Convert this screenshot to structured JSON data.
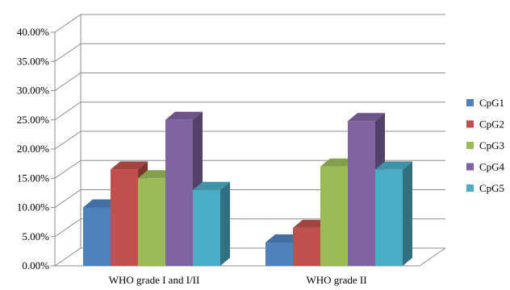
{
  "chart_data": {
    "type": "bar",
    "style": "3d-clustered-column",
    "categories": [
      "WHO grade I and I/II",
      "WHO grade II"
    ],
    "series": [
      {
        "name": "CpG1",
        "color": "#4f81bd",
        "values": [
          0.1,
          0.04
        ]
      },
      {
        "name": "CpG2",
        "color": "#c0504d",
        "values": [
          0.165,
          0.065
        ]
      },
      {
        "name": "CpG3",
        "color": "#9bbb59",
        "values": [
          0.15,
          0.17
        ]
      },
      {
        "name": "CpG4",
        "color": "#8064a2",
        "values": [
          0.25,
          0.248
        ]
      },
      {
        "name": "CpG5",
        "color": "#4bacc6",
        "values": [
          0.13,
          0.165
        ]
      }
    ],
    "ylim": [
      0,
      0.4
    ],
    "yticks": [
      "0.00%",
      "5.00%",
      "10.00%",
      "15.00%",
      "20.00%",
      "25.00%",
      "30.00%",
      "35.00%",
      "40.00%"
    ],
    "grid": true,
    "legend": "right"
  }
}
